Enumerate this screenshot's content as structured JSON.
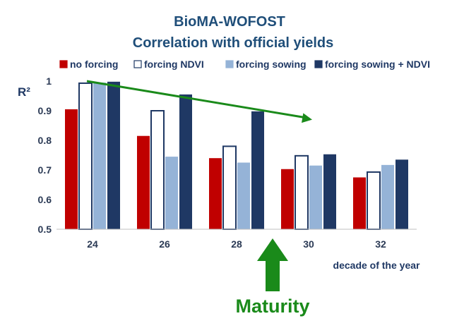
{
  "chart_data": {
    "type": "bar",
    "title": "BioMA-WOFOST",
    "subtitle": "Correlation with official yields",
    "ylabel": "R²",
    "xlabel": "decade of the year",
    "ylim": [
      0.5,
      1
    ],
    "yticks": [
      "0.5",
      "0.6",
      "0.7",
      "0.8",
      "0.9",
      "1"
    ],
    "categories": [
      "24",
      "26",
      "28",
      "30",
      "32"
    ],
    "legend_position": "top",
    "series": [
      {
        "name": "no forcing",
        "color": "#c00000",
        "values": [
          0.905,
          0.815,
          0.74,
          0.703,
          0.675
        ]
      },
      {
        "name": "forcing NDVI",
        "color": "#ffffff",
        "values": [
          0.993,
          0.9,
          0.78,
          0.748,
          0.693
        ]
      },
      {
        "name": "forcing sowing",
        "color": "#95b3d7",
        "values": [
          0.995,
          0.745,
          0.725,
          0.715,
          0.717
        ]
      },
      {
        "name": "forcing sowing + NDVI",
        "color": "#1f3864",
        "values": [
          0.998,
          0.955,
          0.898,
          0.753,
          0.735
        ]
      }
    ],
    "annotation": "Maturity",
    "trend_arrow": {
      "from": {
        "category": "24",
        "value": 1.0
      },
      "to": {
        "category": "30",
        "value": 0.87
      },
      "color": "#1a8a1a"
    },
    "maturity_arrow": {
      "category_between": [
        "28",
        "30"
      ],
      "color": "#1a8a1a"
    }
  }
}
